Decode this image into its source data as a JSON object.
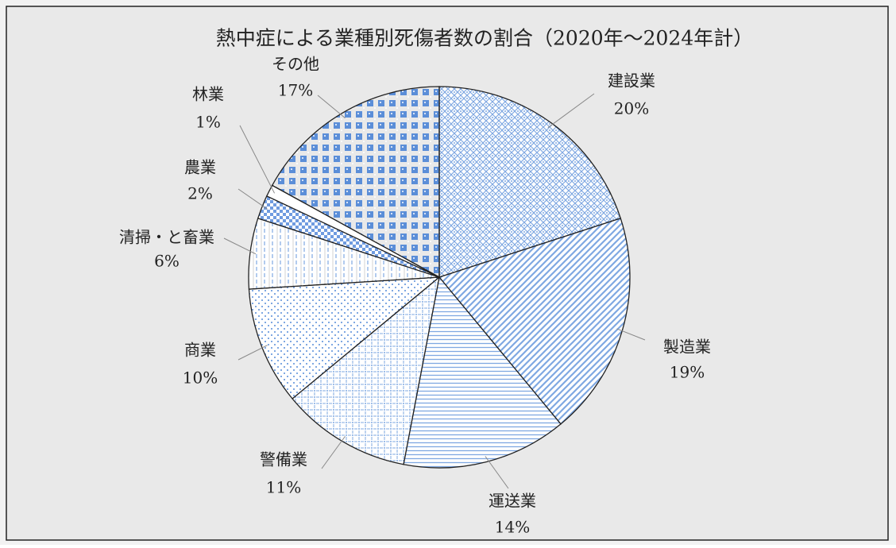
{
  "chart_data": {
    "type": "pie",
    "title": "熱中症による業種別死傷者数の割合（2020年～2024年計）",
    "categories": [
      "建設業",
      "製造業",
      "運送業",
      "警備業",
      "商業",
      "清掃・と畜業",
      "農業",
      "林業",
      "その他"
    ],
    "values": [
      20,
      19,
      14,
      11,
      10,
      6,
      2,
      1,
      17
    ],
    "value_labels": [
      "20%",
      "19%",
      "14%",
      "11%",
      "10%",
      "6%",
      "2%",
      "1%",
      "17%"
    ],
    "colors": [
      "#7fa8e2",
      "#7fa8e2",
      "#7fa8e2",
      "#7fa8e2",
      "#7fa8e2",
      "#7fa8e2",
      "#6f9be0",
      "#ffffff",
      "#5b8ed8"
    ]
  }
}
